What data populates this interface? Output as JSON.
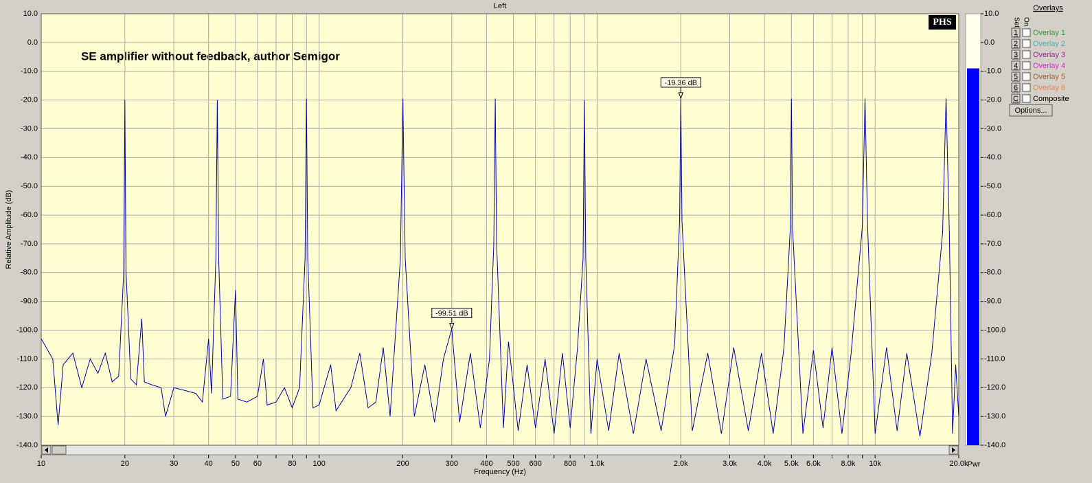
{
  "chart_data": {
    "type": "line",
    "title": "Left",
    "annotation": "SE amplifier without feedback, author Semigor",
    "logo": "PHS",
    "x_label": "Frequency (Hz)",
    "y_label": "Relative Amplitude (dB)",
    "xscale": "log",
    "grid": true,
    "xlim": [
      10,
      20000
    ],
    "ylim": [
      -140,
      10
    ],
    "xticks": [
      10,
      20,
      30,
      40,
      50,
      60,
      {
        "value": 70,
        "label": null
      },
      80,
      {
        "value": 90,
        "label": null
      },
      100,
      200,
      300,
      400,
      500,
      600,
      {
        "value": 700,
        "label": null
      },
      800,
      {
        "value": 900,
        "label": null
      },
      {
        "value": 1000,
        "label": "1.0k"
      },
      {
        "value": 2000,
        "label": "2.0k"
      },
      {
        "value": 3000,
        "label": "3.0k"
      },
      {
        "value": 4000,
        "label": "4.0k"
      },
      {
        "value": 5000,
        "label": "5.0k"
      },
      {
        "value": 6000,
        "label": "6.0k"
      },
      {
        "value": 7000,
        "label": null
      },
      {
        "value": 8000,
        "label": "8.0k"
      },
      {
        "value": 9000,
        "label": null
      },
      {
        "value": 10000,
        "label": "10k"
      },
      {
        "value": 20000,
        "label": "20.0k"
      }
    ],
    "yticks": [
      {
        "value": 10,
        "label": "10.0"
      },
      {
        "value": 0,
        "label": "0.0"
      },
      {
        "value": -10,
        "label": "-10.0"
      },
      {
        "value": -20,
        "label": "-20.0"
      },
      {
        "value": -30,
        "label": "-30.0"
      },
      {
        "value": -40,
        "label": "-40.0"
      },
      {
        "value": -50,
        "label": "-50.0"
      },
      {
        "value": -60,
        "label": "-60.0"
      },
      {
        "value": -70,
        "label": "-70.0"
      },
      {
        "value": -80,
        "label": "-80.0"
      },
      {
        "value": -90,
        "label": "-90.0"
      },
      {
        "value": -100,
        "label": "-100.0"
      },
      {
        "value": -110,
        "label": "-110.0"
      },
      {
        "value": -120,
        "label": "-120.0"
      },
      {
        "value": -130,
        "label": "-130.0"
      },
      {
        "value": -140,
        "label": "-140.0"
      }
    ],
    "x": [
      10,
      11,
      11.5,
      12,
      13,
      14,
      15,
      16,
      17,
      18,
      19,
      19.8,
      20,
      20.2,
      21,
      22,
      23,
      23.5,
      25,
      27,
      28,
      30,
      33,
      36,
      38,
      40,
      41,
      42.5,
      43,
      43.5,
      45,
      48,
      50,
      51,
      55,
      60,
      63,
      65,
      70,
      75,
      80,
      85,
      89,
      90,
      91,
      95,
      100,
      110,
      115,
      130,
      140,
      150,
      160,
      170,
      180,
      196,
      200,
      204,
      220,
      240,
      260,
      280,
      300,
      320,
      350,
      380,
      410,
      425,
      430,
      435,
      460,
      480,
      520,
      560,
      600,
      650,
      700,
      750,
      800,
      850,
      890,
      900,
      910,
      950,
      1000,
      1100,
      1200,
      1350,
      1500,
      1700,
      1900,
      1980,
      2000,
      2020,
      2200,
      2500,
      2800,
      3100,
      3500,
      3900,
      4300,
      4700,
      4950,
      5000,
      5050,
      5500,
      6000,
      6500,
      7000,
      7600,
      8200,
      9000,
      9200,
      9400,
      10000,
      11000,
      12000,
      13000,
      14500,
      16000,
      17500,
      18000,
      18500,
      19000,
      19500,
      20000
    ],
    "series": [
      {
        "color": "#0000b0",
        "values": [
          -103,
          -110,
          -133,
          -112,
          -108,
          -120,
          -110,
          -115,
          -108,
          -118,
          -116,
          -80,
          -20,
          -80,
          -117,
          -119,
          -96,
          -118,
          -119,
          -120,
          -130,
          -120,
          -121,
          -122,
          -125,
          -103,
          -122,
          -75,
          -20,
          -75,
          -124,
          -123,
          -86,
          -124,
          -125,
          -123,
          -110,
          -126,
          -125,
          -120,
          -127,
          -120,
          -75,
          -19.5,
          -75,
          -127,
          -126,
          -112,
          -128,
          -120,
          -108,
          -127,
          -125,
          -106,
          -130,
          -75,
          -19.5,
          -75,
          -130,
          -112,
          -132,
          -110,
          -99.51,
          -132,
          -108,
          -134,
          -110,
          -70,
          -19.5,
          -70,
          -134,
          -104,
          -135,
          -112,
          -134,
          -110,
          -136,
          -108,
          -134,
          -106,
          -75,
          -20,
          -75,
          -136,
          -110,
          -135,
          -108,
          -136,
          -110,
          -135,
          -105,
          -62,
          -19.36,
          -62,
          -135,
          -108,
          -136,
          -106,
          -135,
          -108,
          -136,
          -106,
          -65,
          -19.5,
          -65,
          -136,
          -107,
          -134,
          -106,
          -136,
          -108,
          -64,
          -19.5,
          -64,
          -136,
          -106,
          -135,
          -108,
          -137,
          -108,
          -66,
          -19.5,
          -66,
          -136,
          -112,
          -130
        ]
      }
    ],
    "markers": [
      {
        "x": 2000,
        "value": -19.36,
        "label": "-19.36 dB"
      },
      {
        "x": 300,
        "value": -99.51,
        "label": "-99.51 dB"
      }
    ],
    "power_meter": {
      "label": "Pwr",
      "value": -9,
      "color": "#0000ff"
    },
    "overlays": {
      "title": "Overlays",
      "set": "Set",
      "on": "On",
      "options": "Options...",
      "rows": [
        {
          "key": "1",
          "label": "Overlay 1",
          "color": "#2e9b3e"
        },
        {
          "key": "2",
          "label": "Overlay 2",
          "color": "#3bb3b3"
        },
        {
          "key": "3",
          "label": "Overlay 3",
          "color": "#a020a0"
        },
        {
          "key": "4",
          "label": "Overlay 4",
          "color": "#e020e0"
        },
        {
          "key": "5",
          "label": "Overlay 5",
          "color": "#a06030"
        },
        {
          "key": "6",
          "label": "Overlay 6",
          "color": "#f08050"
        },
        {
          "key": "C",
          "label": "Composite",
          "color": "#000000"
        }
      ]
    }
  }
}
